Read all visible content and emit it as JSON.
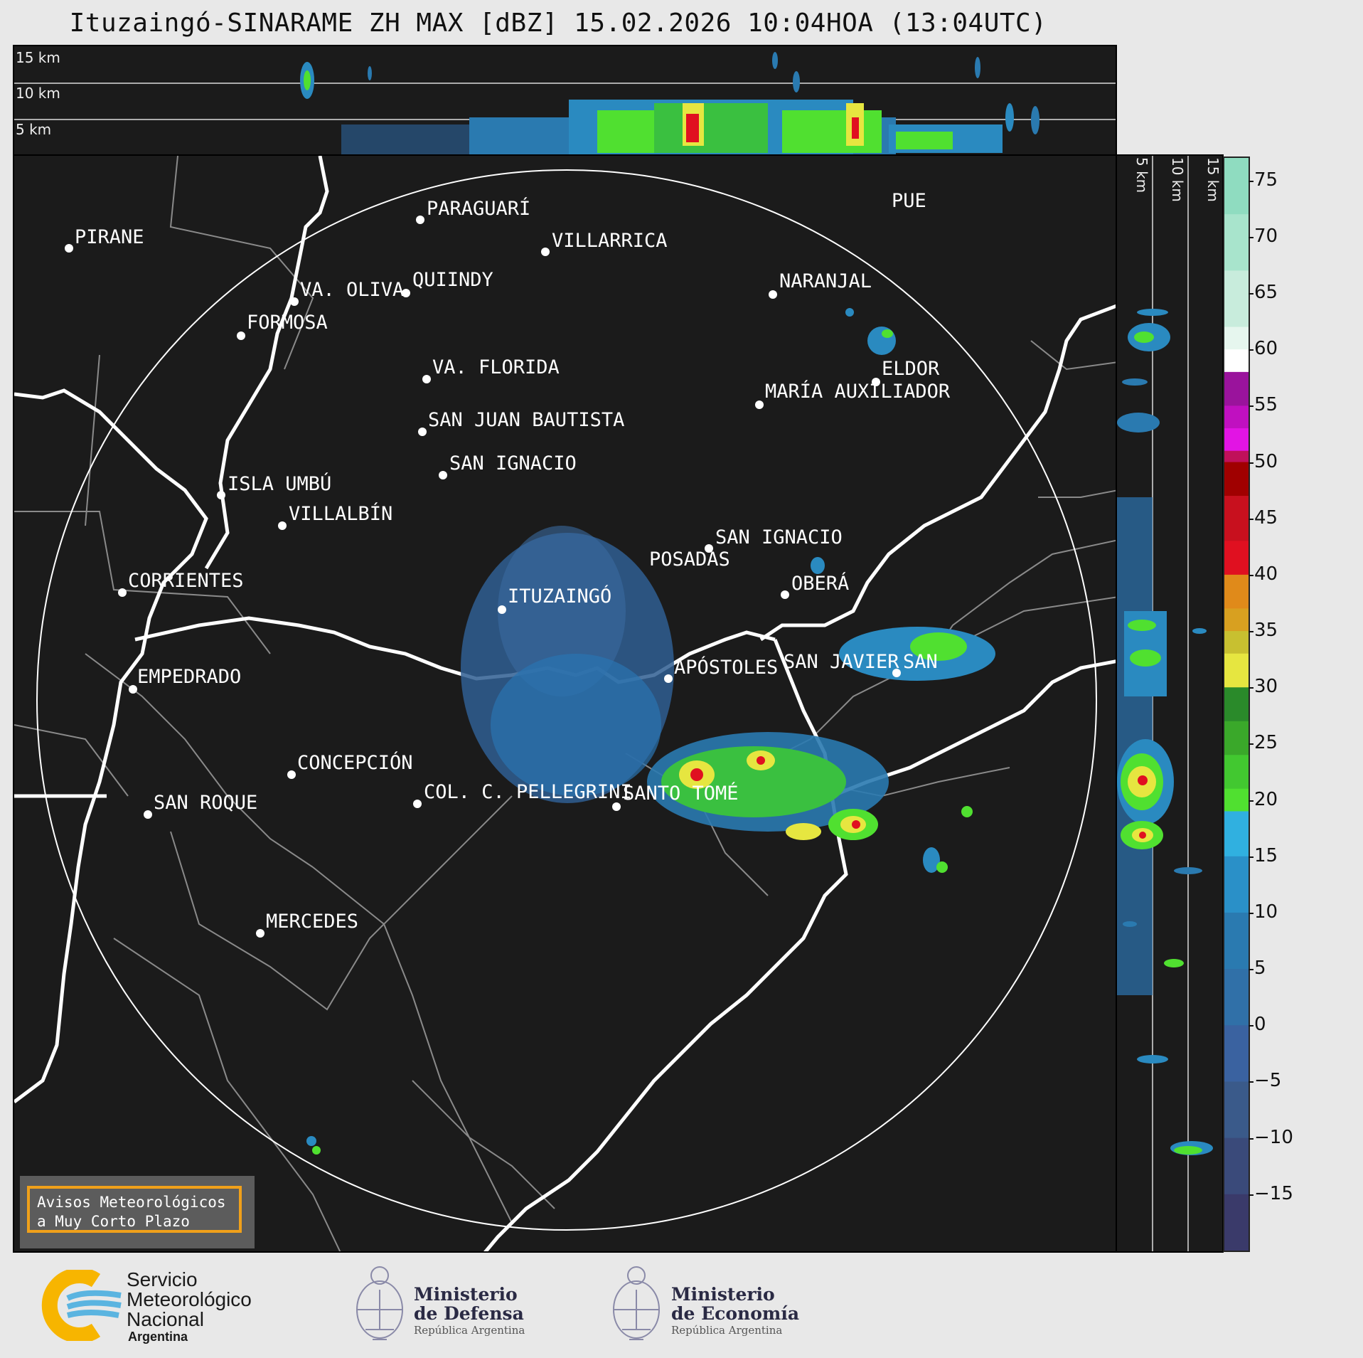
{
  "title": "Ituzaingó-SINARAME ZH MAX [dBZ] 15.02.2026 10:04HOA (13:04UTC)",
  "top_panel": {
    "height_labels": [
      "15 km",
      "10 km",
      "5 km"
    ]
  },
  "side_panel": {
    "height_labels": [
      "5 km",
      "10 km",
      "15 km"
    ]
  },
  "colorbar": {
    "ticks": [
      "75",
      "70",
      "65",
      "60",
      "55",
      "50",
      "45",
      "40",
      "35",
      "30",
      "25",
      "20",
      "15",
      "10",
      "5",
      "0",
      "−5",
      "−10",
      "−15"
    ],
    "colors": {
      "teal_high": "#8fdcc0",
      "white": "#ffffff",
      "purple": "#9a139c",
      "magenta": "#e214e4",
      "dark_red": "#a00000",
      "red": "#e01020",
      "orange": "#e08a1a",
      "yellow": "#e6e640",
      "green": "#2a8a2a",
      "light_green": "#50e030",
      "cyan": "#30b0e0",
      "blue": "#2a7ab0",
      "slate": "#3a5a8a",
      "navy": "#3a3a6a"
    }
  },
  "cities": [
    {
      "name": "PIRANE"
    },
    {
      "name": "PARAGUARÍ"
    },
    {
      "name": "VILLARRICA"
    },
    {
      "name": "QUIINDY"
    },
    {
      "name": "VA. OLIVA"
    },
    {
      "name": "NARANJAL"
    },
    {
      "name": "FORMOSA"
    },
    {
      "name": "VA. FLORIDA"
    },
    {
      "name": "ELDOR"
    },
    {
      "name": "MARÍA AUXILIADOR"
    },
    {
      "name": "SAN JUAN BAUTISTA"
    },
    {
      "name": "SAN IGNACIO"
    },
    {
      "name": "ISLA UMBÚ"
    },
    {
      "name": "VILLALBÍN"
    },
    {
      "name": "SAN IGNACIO"
    },
    {
      "name": "POSADAS"
    },
    {
      "name": "CORRIENTES"
    },
    {
      "name": "ITUZAINGÓ"
    },
    {
      "name": "OBERÁ"
    },
    {
      "name": "APÓSTOLES"
    },
    {
      "name": "SAN JAVIER"
    },
    {
      "name": "SAN"
    },
    {
      "name": "EMPEDRADO"
    },
    {
      "name": "CONCEPCIÓN"
    },
    {
      "name": "COL. C. PELLEGRINI"
    },
    {
      "name": "SANTO TOMÉ"
    },
    {
      "name": "SAN ROQUE"
    },
    {
      "name": "MERCEDES"
    },
    {
      "name": "PUE"
    }
  ],
  "warning_box": {
    "line1": "Avisos Meteorológicos",
    "line2": "a Muy Corto Plazo"
  },
  "footer": {
    "smn_line1": "Servicio",
    "smn_line2": "Meteorológico",
    "smn_line3": "Nacional",
    "smn_line4": "Argentina",
    "defensa_line1": "Ministerio",
    "defensa_line2": "de Defensa",
    "defensa_sub": "República Argentina",
    "economia_line1": "Ministerio",
    "economia_line2": "de Economía",
    "economia_sub": "República Argentina"
  }
}
